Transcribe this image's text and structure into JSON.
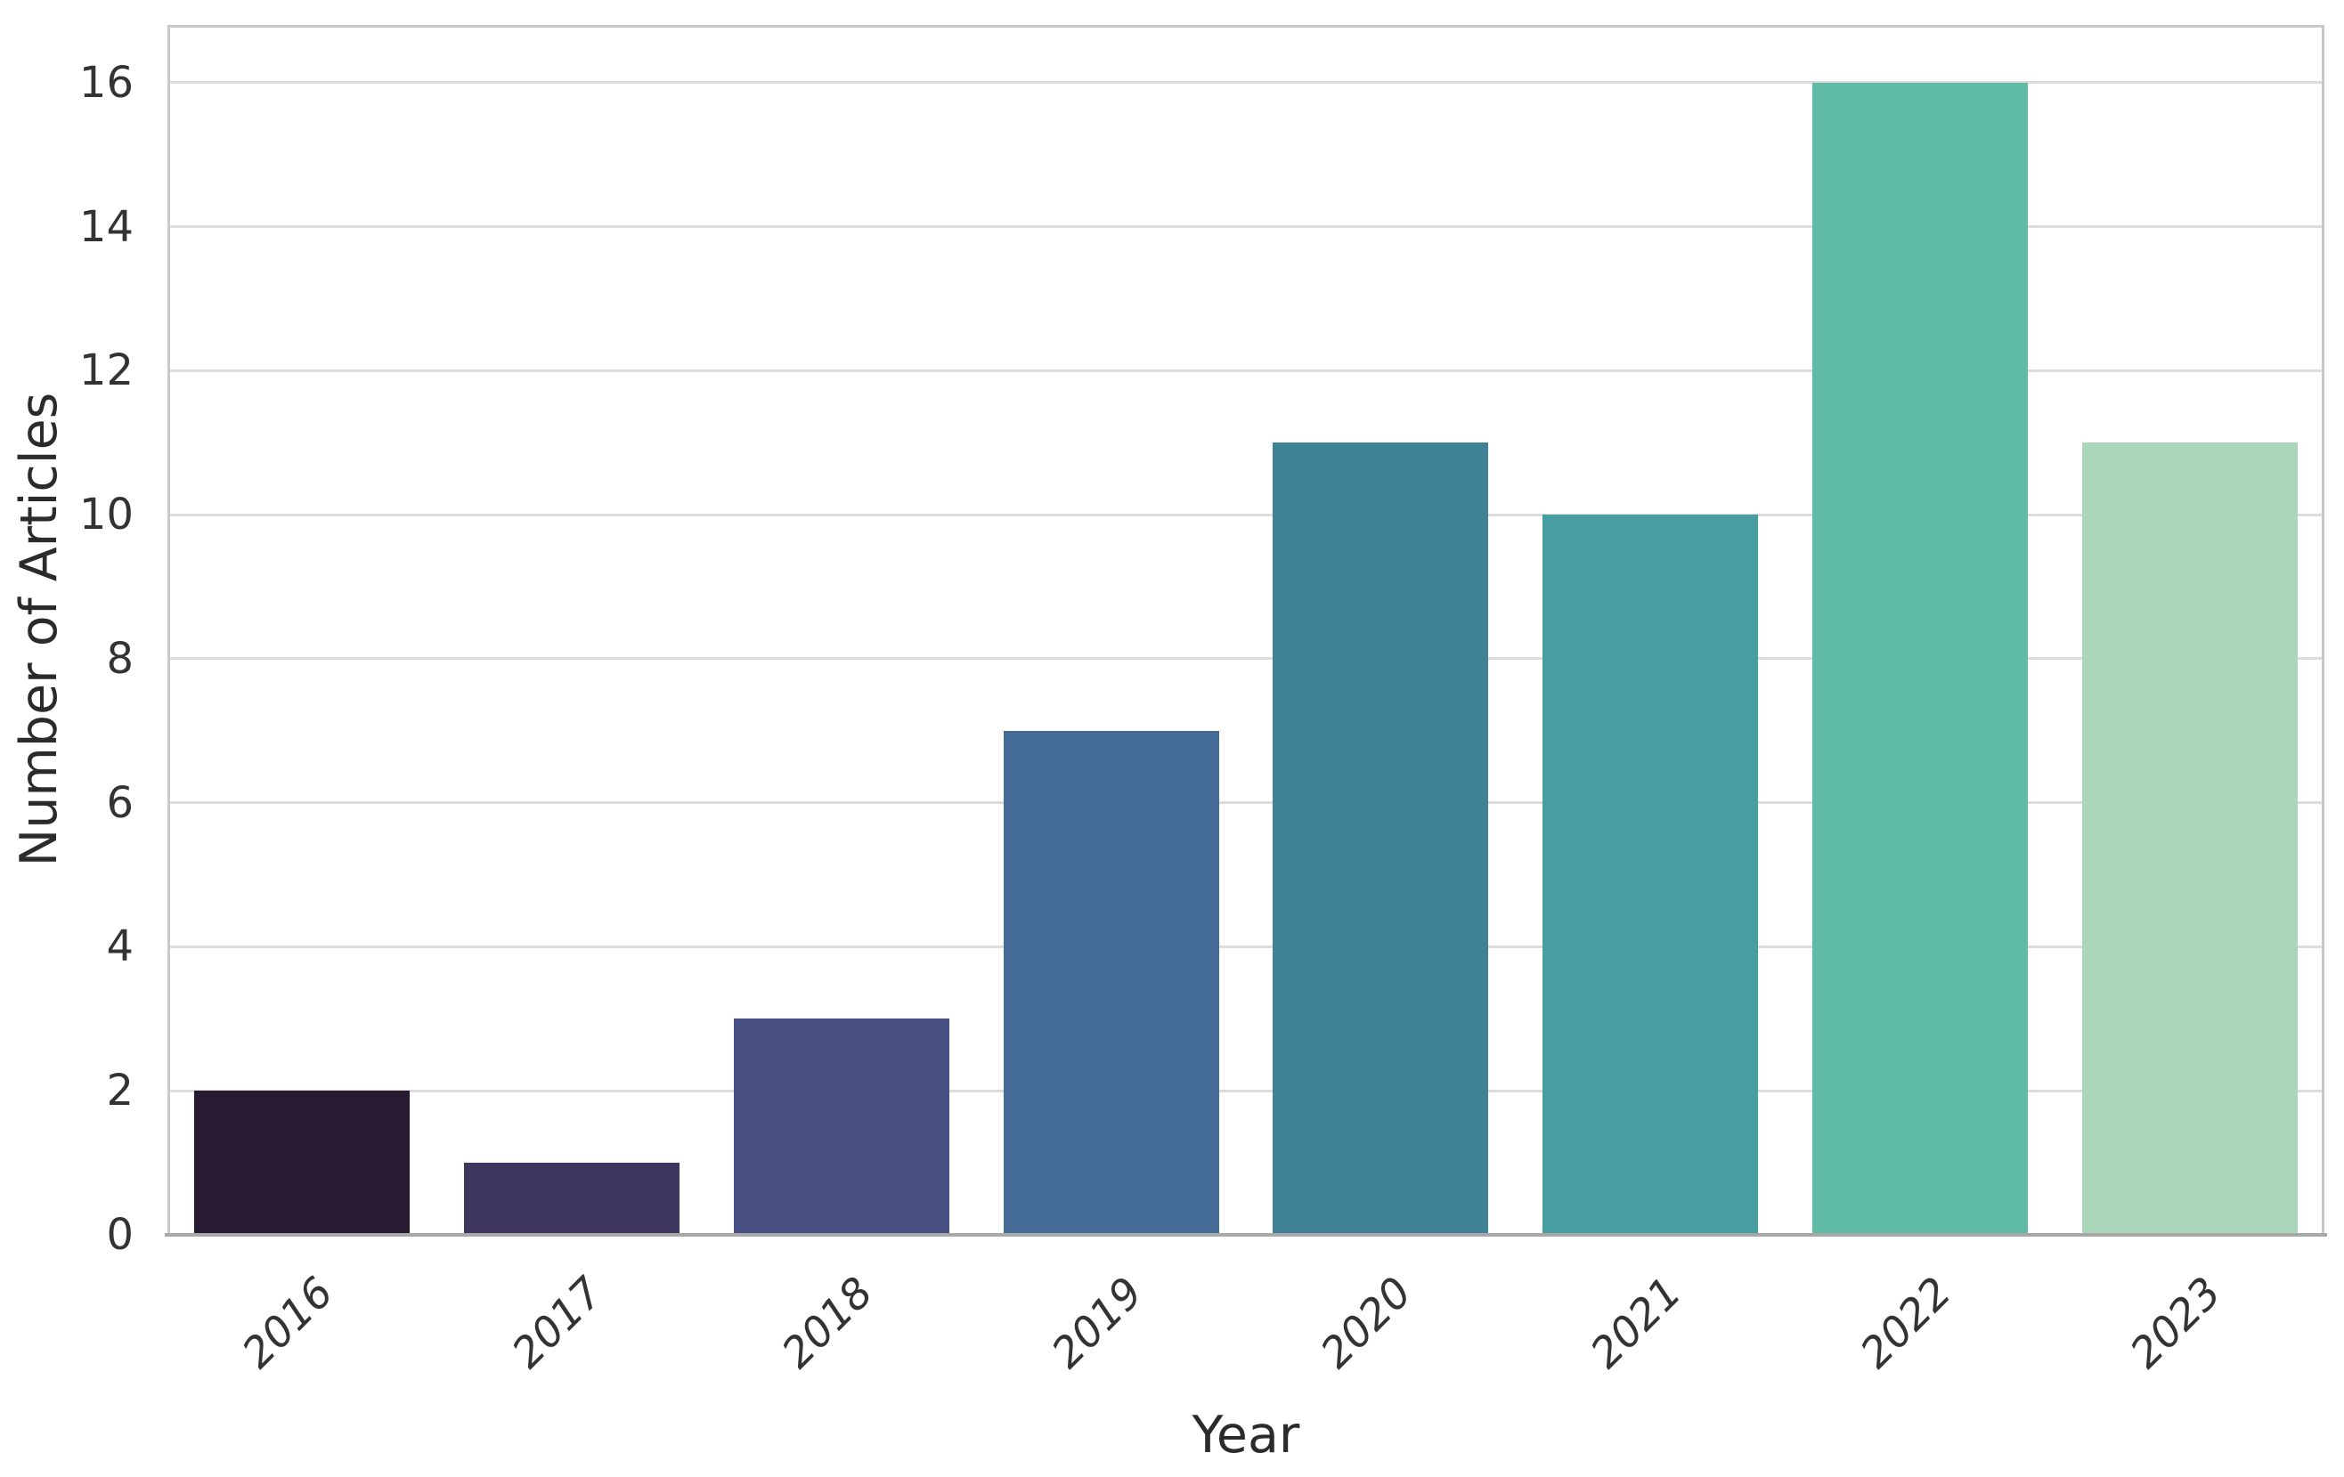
{
  "chart_data": {
    "type": "bar",
    "title": "",
    "xlabel": "Year",
    "ylabel": "Number of Articles",
    "categories": [
      "2016",
      "2017",
      "2018",
      "2019",
      "2020",
      "2021",
      "2022",
      "2023"
    ],
    "values": [
      2,
      1,
      3,
      7,
      11,
      10,
      16,
      11
    ],
    "bar_colors": [
      "#281a31",
      "#3f3660",
      "#474f82",
      "#446b95",
      "#3f8296",
      "#479da0",
      "#60bba6",
      "#aad7ba"
    ],
    "yticks": [
      0,
      2,
      4,
      6,
      8,
      10,
      12,
      14,
      16
    ],
    "ylim": [
      0,
      16.8
    ],
    "grid": "horizontal-only",
    "legend": "none",
    "palette": "mako",
    "background_color": "#ffffff",
    "gridline_color": "#dcdcdc",
    "spine_color": "#c9c9c9"
  }
}
